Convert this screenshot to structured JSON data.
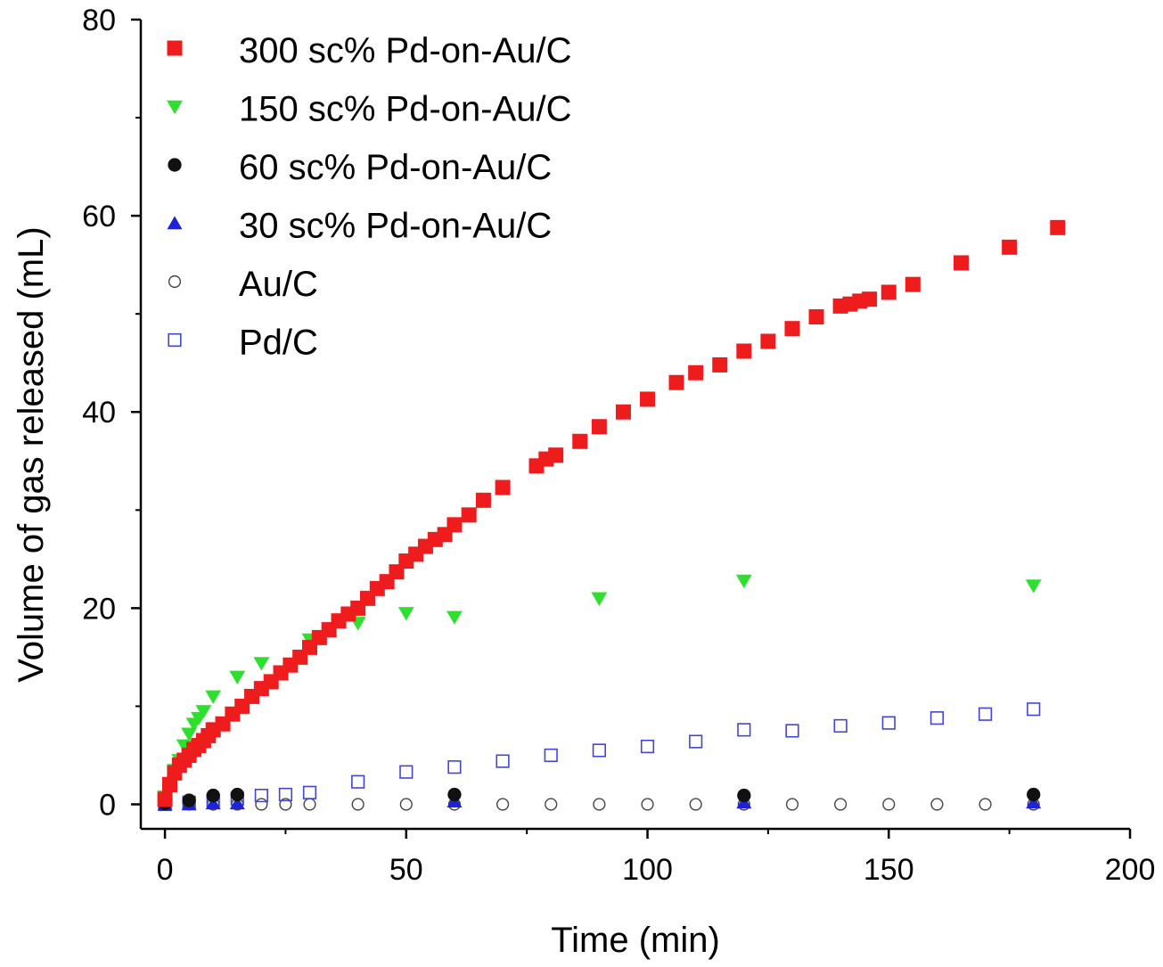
{
  "chart_data": {
    "type": "scatter",
    "title": "",
    "xlabel": "Time (min)",
    "ylabel": "Volume of gas released (mL)",
    "xlim": [
      -5,
      200
    ],
    "ylim": [
      -2.5,
      80
    ],
    "x_ticks": [
      0,
      50,
      100,
      150,
      200
    ],
    "y_ticks": [
      0,
      20,
      40,
      60,
      80
    ],
    "legend_position": "top-left",
    "grid": false,
    "series": [
      {
        "name": "300 sc% Pd-on-Au/C",
        "marker": "square-filled",
        "color": "#ee1c1c",
        "points": [
          [
            0,
            0.5
          ],
          [
            1,
            2
          ],
          [
            2,
            3.2
          ],
          [
            3,
            4
          ],
          [
            4,
            4.5
          ],
          [
            5,
            5
          ],
          [
            6,
            5.6
          ],
          [
            7,
            6
          ],
          [
            8,
            6.5
          ],
          [
            9,
            7
          ],
          [
            10,
            7.6
          ],
          [
            12,
            8.2
          ],
          [
            14,
            9.2
          ],
          [
            16,
            10
          ],
          [
            18,
            11
          ],
          [
            20,
            11.8
          ],
          [
            22,
            12.5
          ],
          [
            24,
            13.4
          ],
          [
            26,
            14.2
          ],
          [
            28,
            15
          ],
          [
            30,
            16
          ],
          [
            32,
            17
          ],
          [
            34,
            17.8
          ],
          [
            36,
            18.7
          ],
          [
            38,
            19.4
          ],
          [
            40,
            20
          ],
          [
            42,
            21
          ],
          [
            44,
            22
          ],
          [
            46,
            22.7
          ],
          [
            48,
            23.7
          ],
          [
            50,
            24.8
          ],
          [
            52,
            25.5
          ],
          [
            54,
            26.3
          ],
          [
            56,
            27
          ],
          [
            58,
            27.5
          ],
          [
            60,
            28.5
          ],
          [
            63,
            29.5
          ],
          [
            66,
            31
          ],
          [
            70,
            32.3
          ],
          [
            77,
            34.5
          ],
          [
            79,
            35.2
          ],
          [
            81,
            35.6
          ],
          [
            86,
            37
          ],
          [
            90,
            38.5
          ],
          [
            95,
            40
          ],
          [
            100,
            41.3
          ],
          [
            106,
            43
          ],
          [
            110,
            44
          ],
          [
            115,
            44.8
          ],
          [
            120,
            46.2
          ],
          [
            125,
            47.2
          ],
          [
            130,
            48.5
          ],
          [
            135,
            49.7
          ],
          [
            140,
            50.8
          ],
          [
            142,
            51
          ],
          [
            144,
            51.3
          ],
          [
            146,
            51.5
          ],
          [
            150,
            52.2
          ],
          [
            155,
            53
          ],
          [
            165,
            55.2
          ],
          [
            175,
            56.8
          ],
          [
            185,
            58.8
          ]
        ]
      },
      {
        "name": "150 sc% Pd-on-Au/C",
        "marker": "triangle-down-filled",
        "color": "#2ee02e",
        "points": [
          [
            0,
            0.8
          ],
          [
            1,
            2.2
          ],
          [
            2,
            3.5
          ],
          [
            3,
            4.5
          ],
          [
            4,
            6
          ],
          [
            5,
            7.2
          ],
          [
            6,
            8.2
          ],
          [
            7,
            8.8
          ],
          [
            8,
            9.5
          ],
          [
            10,
            11
          ],
          [
            15,
            13
          ],
          [
            20,
            14.4
          ],
          [
            30,
            16.8
          ],
          [
            40,
            18.5
          ],
          [
            50,
            19.5
          ],
          [
            60,
            19.1
          ],
          [
            90,
            21
          ],
          [
            120,
            22.8
          ],
          [
            180,
            22.3
          ]
        ]
      },
      {
        "name": "60 sc% Pd-on-Au/C",
        "marker": "circle-filled",
        "color": "#111111",
        "points": [
          [
            0,
            0.1
          ],
          [
            5,
            0.4
          ],
          [
            10,
            0.9
          ],
          [
            15,
            1
          ],
          [
            60,
            1
          ],
          [
            120,
            0.9
          ],
          [
            180,
            1
          ]
        ]
      },
      {
        "name": "30 sc% Pd-on-Au/C",
        "marker": "triangle-up-filled",
        "color": "#1e22d8",
        "points": [
          [
            0,
            0
          ],
          [
            5,
            0
          ],
          [
            10,
            0.1
          ],
          [
            15,
            0.1
          ],
          [
            60,
            0.3
          ],
          [
            120,
            0.2
          ],
          [
            180,
            0.2
          ]
        ]
      },
      {
        "name": "Au/C",
        "marker": "circle-open",
        "color": "#444444",
        "points": [
          [
            0,
            0
          ],
          [
            5,
            0
          ],
          [
            10,
            0
          ],
          [
            15,
            0
          ],
          [
            20,
            0
          ],
          [
            25,
            0
          ],
          [
            30,
            0
          ],
          [
            40,
            0
          ],
          [
            50,
            0
          ],
          [
            60,
            0
          ],
          [
            70,
            0
          ],
          [
            80,
            0
          ],
          [
            90,
            0
          ],
          [
            100,
            0
          ],
          [
            110,
            0
          ],
          [
            120,
            0
          ],
          [
            130,
            0
          ],
          [
            140,
            0
          ],
          [
            150,
            0
          ],
          [
            160,
            0
          ],
          [
            170,
            0
          ],
          [
            180,
            0
          ]
        ]
      },
      {
        "name": "Pd/C",
        "marker": "square-open",
        "color": "#3f47d8",
        "points": [
          [
            0,
            0
          ],
          [
            5,
            0.2
          ],
          [
            10,
            0.4
          ],
          [
            15,
            0.6
          ],
          [
            20,
            0.9
          ],
          [
            25,
            1
          ],
          [
            30,
            1.2
          ],
          [
            40,
            2.3
          ],
          [
            50,
            3.3
          ],
          [
            60,
            3.8
          ],
          [
            70,
            4.4
          ],
          [
            80,
            5
          ],
          [
            90,
            5.5
          ],
          [
            100,
            5.9
          ],
          [
            110,
            6.4
          ],
          [
            120,
            7.6
          ],
          [
            130,
            7.5
          ],
          [
            140,
            8
          ],
          [
            150,
            8.3
          ],
          [
            160,
            8.8
          ],
          [
            170,
            9.2
          ],
          [
            180,
            9.7
          ]
        ]
      }
    ]
  }
}
